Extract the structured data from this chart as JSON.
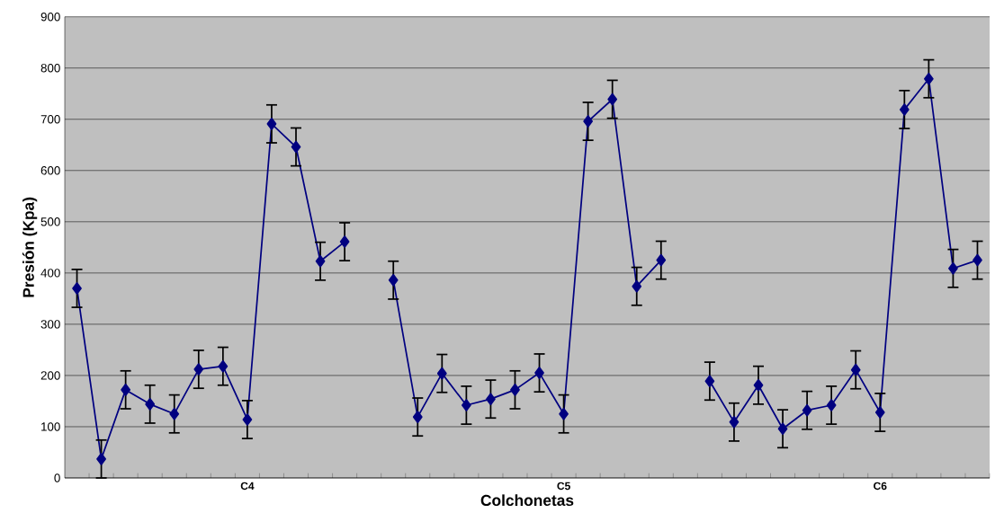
{
  "chart_data": {
    "type": "line",
    "xlabel": "Colchonetas",
    "ylabel": "Presión (Kpa)",
    "categories": [
      null,
      null,
      null,
      null,
      null,
      null,
      null,
      "C4",
      null,
      null,
      null,
      null,
      null,
      null,
      null,
      null,
      null,
      null,
      null,
      null,
      "C5",
      null,
      null,
      null,
      null,
      null,
      null,
      null,
      null,
      null,
      null,
      null,
      null,
      "C6",
      null,
      null,
      null,
      null
    ],
    "series": [
      {
        "color": "#000080",
        "values": [
          370,
          37,
          172,
          144,
          125,
          212,
          218,
          114,
          691,
          646,
          423,
          461,
          null,
          386,
          119,
          204,
          142,
          154,
          172,
          205,
          125,
          696,
          739,
          374,
          425,
          null,
          189,
          109,
          181,
          96,
          132,
          142,
          211,
          128,
          719,
          779,
          409,
          425
        ],
        "errors": [
          37,
          37,
          37,
          37,
          37,
          37,
          37,
          37,
          37,
          37,
          37,
          37,
          null,
          37,
          37,
          37,
          37,
          37,
          37,
          37,
          37,
          37,
          37,
          37,
          37,
          null,
          37,
          37,
          37,
          37,
          37,
          37,
          37,
          37,
          37,
          37,
          37,
          37
        ]
      }
    ],
    "ylim": [
      0,
      900
    ],
    "yticks": [
      0,
      100,
      200,
      300,
      400,
      500,
      600,
      700,
      800,
      900
    ],
    "grid": "y",
    "marker": "diamond",
    "line_style": "solid"
  }
}
